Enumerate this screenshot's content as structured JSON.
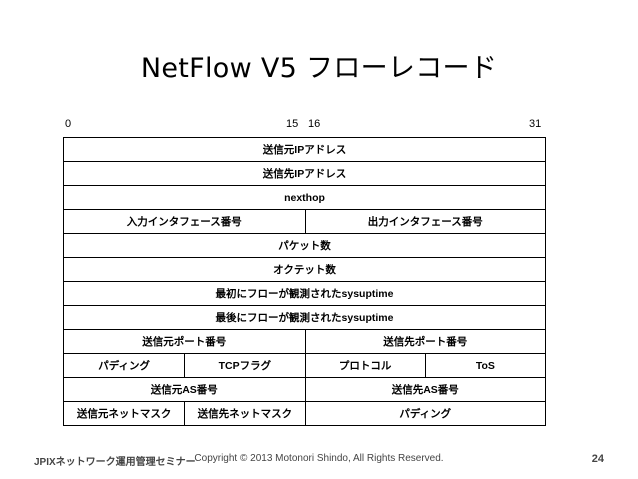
{
  "title": "NetFlow V5 フローレコード",
  "bit_labels": {
    "start": "0",
    "mid_end": "15",
    "mid_start": "16",
    "end": "31"
  },
  "rows": [
    [
      "送信元IPアドレス"
    ],
    [
      "送信先IPアドレス"
    ],
    [
      "nexthop"
    ],
    [
      "入力インタフェース番号",
      "出力インタフェース番号"
    ],
    [
      "パケット数"
    ],
    [
      "オクテット数"
    ],
    [
      "最初にフローが観測されたsysuptime"
    ],
    [
      "最後にフローが観測されたsysuptime"
    ],
    [
      "送信元ポート番号",
      "送信先ポート番号"
    ],
    [
      "パディング",
      "TCPフラグ",
      "プロトコル",
      "ToS"
    ],
    [
      "送信元AS番号",
      "送信先AS番号"
    ],
    [
      "送信元ネットマスク",
      "送信先ネットマスク",
      "パディング"
    ]
  ],
  "footer": {
    "left": "JPIXネットワーク運用管理セミナー",
    "center": "Copyright © 2013 Motonori Shindo, All Rights Reserved.",
    "page": "24"
  }
}
